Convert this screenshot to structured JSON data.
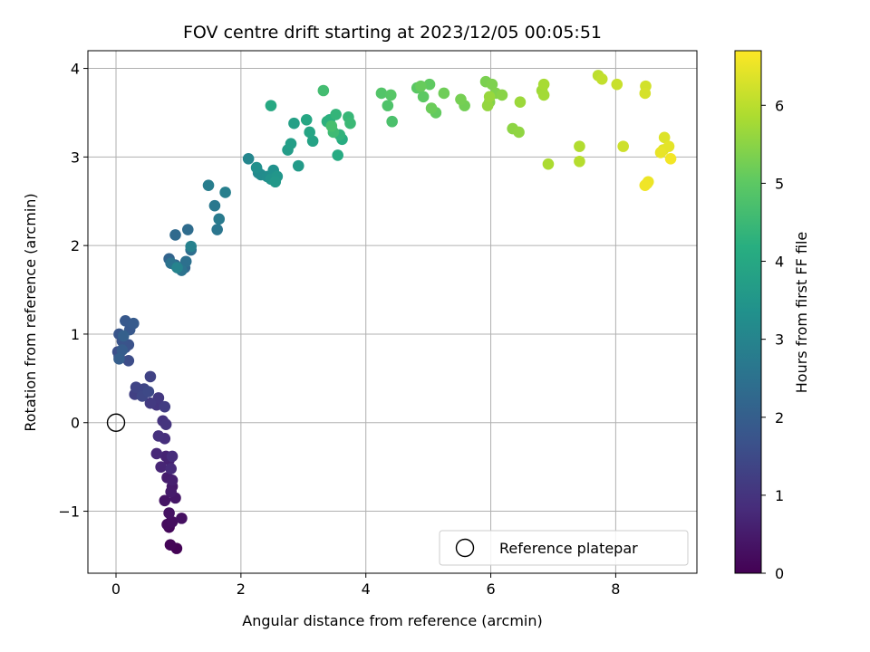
{
  "chart_data": {
    "type": "scatter",
    "title": "FOV centre drift starting at 2023/12/05 00:05:51",
    "xlabel": "Angular distance from reference (arcmin)",
    "ylabel": "Rotation from reference (arcmin)",
    "xlim": [
      -0.45,
      9.3
    ],
    "ylim": [
      -1.7,
      4.2
    ],
    "xticks": [
      0,
      2,
      4,
      6,
      8
    ],
    "yticks": [
      -1,
      0,
      1,
      2,
      3,
      4
    ],
    "xtick_labels": [
      "0",
      "2",
      "4",
      "6",
      "8"
    ],
    "ytick_labels": [
      "−1",
      "0",
      "1",
      "2",
      "3",
      "4"
    ],
    "grid": true,
    "legend": {
      "placement": "lower-right",
      "entries": [
        "Reference platepar"
      ]
    },
    "reference_point": {
      "name": "Reference platepar",
      "x": 0,
      "y": 0,
      "marker": "open-circle"
    },
    "colorbar": {
      "label": "Hours from first FF file",
      "colormap": "viridis",
      "range": [
        0,
        6.7
      ],
      "ticks": [
        0,
        1,
        2,
        3,
        4,
        5,
        6
      ],
      "tick_labels": [
        "0",
        "1",
        "2",
        "3",
        "4",
        "5",
        "6"
      ]
    },
    "series": [
      {
        "x": [
          0.97,
          0.87,
          0.85,
          0.88,
          0.82,
          0.9,
          1.05,
          0.85,
          0.78,
          0.95,
          0.9,
          0.88,
          0.82,
          0.9,
          0.85,
          0.8,
          0.72,
          0.65,
          0.88,
          0.9,
          0.78,
          0.68,
          0.75,
          0.8,
          0.65,
          0.68,
          0.55,
          0.78,
          0.48,
          0.3,
          0.55,
          0.32,
          0.45,
          0.42,
          0.52,
          0.05,
          0.2,
          0.03,
          0.15,
          0.2,
          0.1,
          0.05,
          0.22,
          0.15,
          0.28,
          0.1,
          0.05,
          0.12,
          0.85,
          0.95,
          1.1,
          0.95,
          1.15,
          1.2,
          1.12,
          0.88,
          1.05,
          1.62,
          1.58,
          1.65,
          1.48,
          1.75,
          1.2,
          0.98,
          2.12,
          2.28,
          2.32,
          2.42,
          2.25,
          2.52,
          2.48,
          2.58,
          2.55,
          2.92,
          2.75,
          2.8,
          2.85,
          3.15,
          3.1,
          3.05,
          2.48,
          3.55,
          3.62,
          3.42,
          3.38,
          3.58,
          3.52,
          3.72,
          3.75,
          3.48,
          3.32,
          3.45,
          4.42,
          4.35,
          4.25,
          4.4,
          4.82,
          4.92,
          5.02,
          5.12,
          4.88,
          5.05,
          5.25,
          5.58,
          5.52,
          5.92,
          6.02,
          6.08,
          5.98,
          6.18,
          6.35,
          6.45,
          5.95,
          5.98,
          6.47,
          6.82,
          6.85,
          6.85,
          6.92,
          7.42,
          7.42,
          7.72,
          7.78,
          8.02,
          8.12,
          8.48,
          8.47,
          8.5,
          8.78,
          8.76,
          8.85,
          8.72,
          8.52,
          8.47,
          8.88
        ],
        "y": [
          -1.42,
          -1.38,
          -1.18,
          -1.12,
          -1.15,
          -1.12,
          -1.08,
          -1.02,
          -0.88,
          -0.85,
          -0.72,
          -0.78,
          -0.62,
          -0.65,
          -0.42,
          -0.38,
          -0.5,
          -0.35,
          -0.52,
          -0.38,
          -0.18,
          -0.15,
          0.02,
          -0.02,
          0.2,
          0.28,
          0.22,
          0.18,
          0.35,
          0.32,
          0.52,
          0.4,
          0.38,
          0.3,
          0.35,
          0.75,
          0.7,
          0.8,
          0.85,
          0.88,
          0.92,
          1.0,
          1.05,
          1.15,
          1.12,
          0.82,
          0.72,
          0.98,
          1.85,
          1.78,
          1.75,
          2.12,
          2.18,
          1.95,
          1.82,
          1.8,
          1.72,
          2.18,
          2.45,
          2.3,
          2.68,
          2.6,
          1.99,
          1.75,
          2.98,
          2.82,
          2.8,
          2.78,
          2.88,
          2.85,
          2.75,
          2.78,
          2.72,
          2.9,
          3.08,
          3.15,
          3.38,
          3.18,
          3.28,
          3.42,
          3.58,
          3.02,
          3.2,
          3.42,
          3.4,
          3.25,
          3.48,
          3.45,
          3.38,
          3.28,
          3.75,
          3.35,
          3.4,
          3.58,
          3.72,
          3.7,
          3.78,
          3.68,
          3.82,
          3.5,
          3.8,
          3.55,
          3.72,
          3.58,
          3.65,
          3.85,
          3.82,
          3.72,
          3.62,
          3.7,
          3.32,
          3.28,
          3.58,
          3.68,
          3.62,
          3.75,
          3.7,
          3.82,
          2.92,
          3.12,
          2.95,
          3.92,
          3.88,
          3.82,
          3.12,
          3.8,
          3.72,
          2.7,
          3.22,
          3.08,
          3.12,
          3.05,
          2.72,
          2.68,
          2.98
        ],
        "hours": [
          0.03,
          0.07,
          0.11,
          0.16,
          0.2,
          0.24,
          0.28,
          0.33,
          0.37,
          0.41,
          0.46,
          0.5,
          0.54,
          0.58,
          0.63,
          0.67,
          0.71,
          0.75,
          0.8,
          0.84,
          0.88,
          0.92,
          0.97,
          1.01,
          1.05,
          1.09,
          1.14,
          1.18,
          1.22,
          1.26,
          1.31,
          1.35,
          1.39,
          1.43,
          1.48,
          1.52,
          1.56,
          1.6,
          1.65,
          1.69,
          1.73,
          1.77,
          1.82,
          1.86,
          1.9,
          1.94,
          1.99,
          2.03,
          2.15,
          2.2,
          2.25,
          2.3,
          2.35,
          2.4,
          2.45,
          2.5,
          2.55,
          2.62,
          2.68,
          2.74,
          2.8,
          2.86,
          2.92,
          2.98,
          3.05,
          3.12,
          3.18,
          3.24,
          3.3,
          3.36,
          3.42,
          3.48,
          3.54,
          3.6,
          3.66,
          3.72,
          3.78,
          3.84,
          3.9,
          3.96,
          4.02,
          4.08,
          4.14,
          4.2,
          4.26,
          4.32,
          4.38,
          4.44,
          4.5,
          4.56,
          4.62,
          4.68,
          4.74,
          4.8,
          4.86,
          4.92,
          4.96,
          5.0,
          5.04,
          5.08,
          5.12,
          5.16,
          5.2,
          5.24,
          5.28,
          5.32,
          5.36,
          5.4,
          5.44,
          5.48,
          5.52,
          5.56,
          5.6,
          5.64,
          5.68,
          5.72,
          5.76,
          5.8,
          5.84,
          5.9,
          5.96,
          6.02,
          6.08,
          6.14,
          6.2,
          6.24,
          6.28,
          6.32,
          6.36,
          6.4,
          6.44,
          6.48,
          6.52,
          6.56,
          6.6
        ]
      }
    ]
  }
}
